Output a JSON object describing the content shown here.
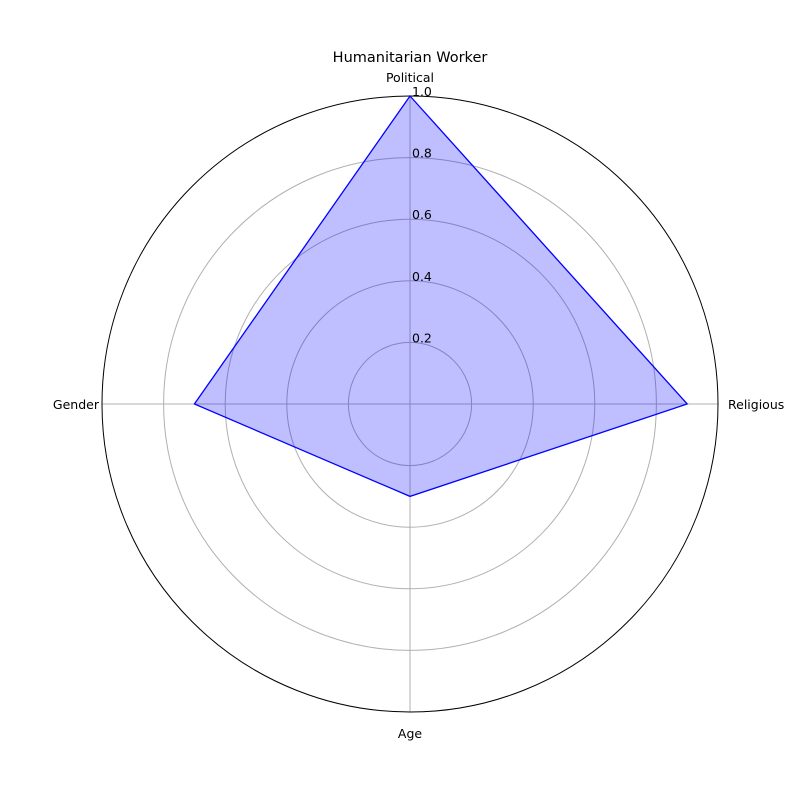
{
  "chart_data": {
    "type": "radar",
    "title": "Humanitarian Worker",
    "categories": [
      "Political",
      "Religious",
      "Age",
      "Gender"
    ],
    "series": [
      {
        "values": [
          1.0,
          0.9,
          0.3,
          0.7
        ]
      }
    ],
    "rlim": [
      0,
      1.0
    ],
    "r_ticks": [
      "0.2",
      "0.4",
      "0.6",
      "0.8",
      "1.0"
    ],
    "grid": true,
    "colors": {
      "line": "#0000ff",
      "fill": "#0000ff",
      "grid": "#b0b0b0",
      "frame": "#000000"
    }
  }
}
